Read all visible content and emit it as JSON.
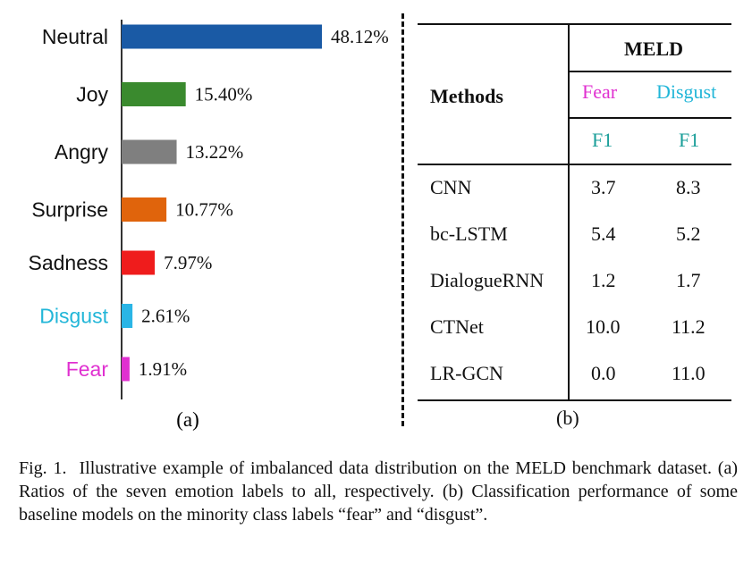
{
  "chart_data": {
    "type": "bar",
    "orientation": "horizontal",
    "categories": [
      "Neutral",
      "Joy",
      "Angry",
      "Surprise",
      "Sadness",
      "Disgust",
      "Fear"
    ],
    "values": [
      48.12,
      15.4,
      13.22,
      10.77,
      7.97,
      2.61,
      1.91
    ],
    "value_labels": [
      "48.12%",
      "15.40%",
      "13.22%",
      "10.77%",
      "7.97%",
      "2.61%",
      "1.91%"
    ],
    "bar_colors": [
      "#1a5aa5",
      "#3a8a2e",
      "#7f7f7f",
      "#e0640c",
      "#ef1c1c",
      "#2ab5e6",
      "#e030d0"
    ],
    "label_colors": [
      "#111111",
      "#111111",
      "#111111",
      "#111111",
      "#111111",
      "#22b6d8",
      "#e030d0"
    ],
    "subfig_label": "(a)"
  },
  "table": {
    "dataset": "MELD",
    "methods_header": "Methods",
    "classes": [
      "Fear",
      "Disgust"
    ],
    "metric": [
      "F1",
      "F1"
    ],
    "rows": [
      {
        "method": "CNN",
        "fear": "3.7",
        "disgust": "8.3"
      },
      {
        "method": "bc-LSTM",
        "fear": "5.4",
        "disgust": "5.2"
      },
      {
        "method": "DialogueRNN",
        "fear": "1.2",
        "disgust": "1.7"
      },
      {
        "method": "CTNet",
        "fear": "10.0",
        "disgust": "11.2"
      },
      {
        "method": "LR-GCN",
        "fear": "0.0",
        "disgust": "11.0"
      }
    ],
    "subfig_label": "(b)"
  },
  "caption": {
    "label": "Fig. 1.",
    "text": "Illustrative example of imbalanced data distribution on the MELD benchmark dataset. (a) Ratios of the seven emotion labels to all, respectively. (b) Classification performance of some baseline models on the minority class labels “fear” and “disgust”."
  }
}
